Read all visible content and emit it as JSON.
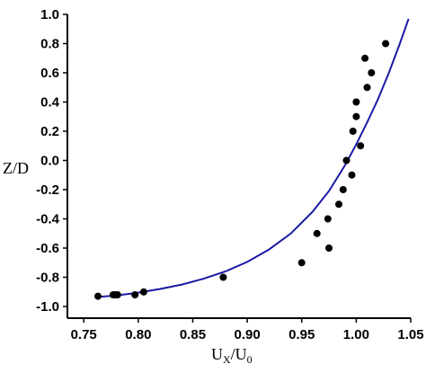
{
  "chart_data": {
    "type": "scatter",
    "title": "",
    "xlabel": "U",
    "xlabel_sub": "X",
    "xlabel_sep": "/U",
    "xlabel_sub2": "0",
    "ylabel": "Z/D",
    "xlim": [
      0.735,
      1.05
    ],
    "ylim": [
      -1.08,
      1.0
    ],
    "x_ticks": [
      "0.75",
      "0.80",
      "0.85",
      "0.90",
      "0.95",
      "1.00",
      "1.05"
    ],
    "y_ticks": [
      "1.0",
      "0.8",
      "0.6",
      "0.4",
      "0.2",
      "0.0",
      "-0.2",
      "-0.4",
      "-0.6",
      "-0.8",
      "-1.0"
    ],
    "grid": false,
    "colors": {
      "points": "#000000",
      "curve": "#1a1aa6",
      "axes": "#000000"
    },
    "series": [
      {
        "kind": "points",
        "points": [
          [
            0.763,
            -0.93
          ],
          [
            0.777,
            -0.92
          ],
          [
            0.779,
            -0.92
          ],
          [
            0.781,
            -0.92
          ],
          [
            0.797,
            -0.92
          ],
          [
            0.805,
            -0.9
          ],
          [
            0.878,
            -0.8
          ],
          [
            0.95,
            -0.7
          ],
          [
            0.964,
            -0.5
          ],
          [
            0.974,
            -0.4
          ],
          [
            0.975,
            -0.6
          ],
          [
            0.984,
            -0.3
          ],
          [
            0.988,
            -0.2
          ],
          [
            0.991,
            0.0
          ],
          [
            0.996,
            -0.1
          ],
          [
            0.997,
            0.2
          ],
          [
            1.0,
            0.3
          ],
          [
            1.0,
            0.4
          ],
          [
            1.004,
            0.1
          ],
          [
            1.008,
            0.7
          ],
          [
            1.01,
            0.5
          ],
          [
            1.014,
            0.6
          ],
          [
            1.027,
            0.8
          ]
        ]
      },
      {
        "kind": "curve",
        "points": [
          [
            0.763,
            -0.935
          ],
          [
            0.78,
            -0.925
          ],
          [
            0.8,
            -0.905
          ],
          [
            0.82,
            -0.88
          ],
          [
            0.84,
            -0.85
          ],
          [
            0.86,
            -0.81
          ],
          [
            0.88,
            -0.76
          ],
          [
            0.9,
            -0.695
          ],
          [
            0.92,
            -0.61
          ],
          [
            0.94,
            -0.5
          ],
          [
            0.96,
            -0.35
          ],
          [
            0.975,
            -0.21
          ],
          [
            0.99,
            -0.03
          ],
          [
            1.0,
            0.11
          ],
          [
            1.01,
            0.26
          ],
          [
            1.02,
            0.42
          ],
          [
            1.03,
            0.6
          ],
          [
            1.04,
            0.8
          ],
          [
            1.048,
            0.97
          ]
        ]
      }
    ]
  }
}
